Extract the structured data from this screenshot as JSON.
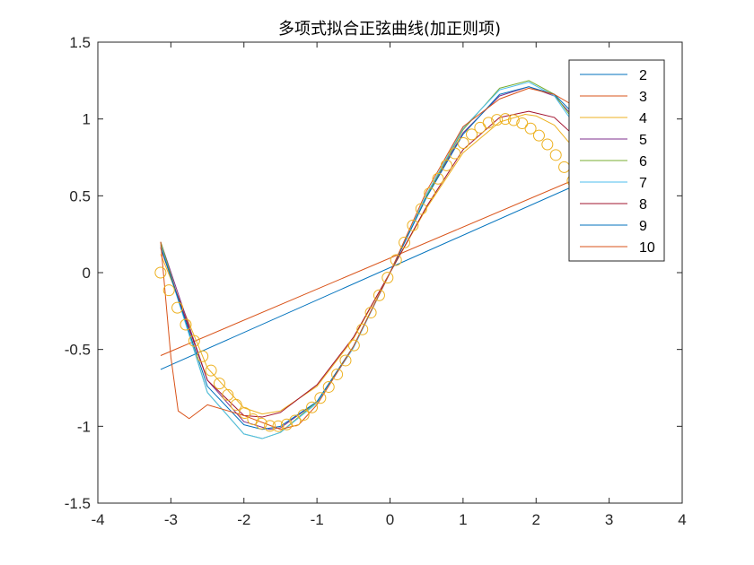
{
  "chart_data": {
    "type": "line",
    "title": "多项式拟合正弦曲线(加正则项)",
    "xlabel": "",
    "ylabel": "",
    "xlim": [
      -4,
      4
    ],
    "ylim": [
      -1.5,
      1.5
    ],
    "x_ticks": [
      -4,
      -3,
      -2,
      -1,
      0,
      1,
      2,
      3,
      4
    ],
    "y_ticks": [
      -1.5,
      -1,
      -0.5,
      0,
      0.5,
      1,
      1.5
    ],
    "x_tick_labels": [
      "-4",
      "-3",
      "-2",
      "-1",
      "0",
      "1",
      "2",
      "3",
      "4"
    ],
    "y_tick_labels": [
      "-1.5",
      "-1",
      "-0.5",
      "0",
      "0.5",
      "1",
      "1.5"
    ],
    "grid": false,
    "legend_position": "top-right",
    "data_markers": {
      "style": "open-circle",
      "color": "#EDB120",
      "x_range": [
        -3.14159,
        2.5
      ],
      "count": 50,
      "y_function": "sin"
    },
    "series": [
      {
        "name": "2",
        "color": "#0072BD",
        "x": [
          -3.14,
          2.5
        ],
        "y": [
          -0.63,
          0.56
        ]
      },
      {
        "name": "3",
        "color": "#D95319",
        "x": [
          -3.14,
          2.5
        ],
        "y": [
          -0.54,
          0.6
        ]
      },
      {
        "name": "4",
        "color": "#EDB120",
        "x": [
          -3.14,
          -2.5,
          -2.0,
          -1.75,
          -1.5,
          -1.0,
          -0.5,
          0.0,
          0.5,
          1.0,
          1.5,
          1.85,
          2.0,
          2.25,
          2.5
        ],
        "y": [
          0.12,
          -0.62,
          -0.88,
          -0.92,
          -0.9,
          -0.74,
          -0.43,
          0.0,
          0.42,
          0.78,
          0.98,
          1.03,
          1.02,
          0.96,
          0.82
        ]
      },
      {
        "name": "5",
        "color": "#7E2F8E",
        "x": [
          -3.14,
          -2.5,
          -2.0,
          -1.65,
          -1.5,
          -1.0,
          -0.5,
          0.0,
          0.5,
          1.0,
          1.5,
          1.9,
          2.25,
          2.5
        ],
        "y": [
          0.2,
          -0.7,
          -0.97,
          -1.02,
          -1.01,
          -0.84,
          -0.48,
          0.0,
          0.5,
          0.91,
          1.15,
          1.21,
          1.15,
          1.02
        ]
      },
      {
        "name": "6",
        "color": "#77AC30",
        "x": [
          -3.14,
          -2.5,
          -2.0,
          -1.75,
          -1.5,
          -1.0,
          -0.5,
          0.0,
          0.5,
          1.0,
          1.5,
          1.9,
          2.25,
          2.5
        ],
        "y": [
          0.2,
          -0.78,
          -1.05,
          -1.08,
          -1.04,
          -0.84,
          -0.48,
          0.0,
          0.5,
          0.93,
          1.2,
          1.25,
          1.16,
          1.0
        ]
      },
      {
        "name": "7",
        "color": "#4DBEEE",
        "x": [
          -3.14,
          -2.5,
          -2.0,
          -1.75,
          -1.5,
          -1.0,
          -0.5,
          0.0,
          0.5,
          1.0,
          1.5,
          1.9,
          2.25,
          2.5
        ],
        "y": [
          0.18,
          -0.78,
          -1.05,
          -1.08,
          -1.04,
          -0.85,
          -0.49,
          0.0,
          0.51,
          0.94,
          1.19,
          1.24,
          1.15,
          0.98
        ]
      },
      {
        "name": "8",
        "color": "#A2142F",
        "x": [
          -3.14,
          -2.5,
          -2.0,
          -1.75,
          -1.5,
          -1.0,
          -0.5,
          0.0,
          0.5,
          1.0,
          1.5,
          1.9,
          2.25,
          2.5
        ],
        "y": [
          0.16,
          -0.7,
          -0.93,
          -0.94,
          -0.91,
          -0.73,
          -0.42,
          0.0,
          0.43,
          0.8,
          1.01,
          1.05,
          1.01,
          0.9
        ]
      },
      {
        "name": "9",
        "color": "#0072BD",
        "x": [
          -3.14,
          -2.5,
          -2.0,
          -1.75,
          -1.5,
          -1.0,
          -0.5,
          0.0,
          0.5,
          1.0,
          1.5,
          1.9,
          2.25,
          2.5
        ],
        "y": [
          0.17,
          -0.74,
          -0.99,
          -1.02,
          -1.0,
          -0.84,
          -0.48,
          0.0,
          0.49,
          0.9,
          1.16,
          1.21,
          1.16,
          1.04
        ]
      },
      {
        "name": "10",
        "color": "#D95319",
        "x": [
          -3.14,
          -3.0,
          -2.9,
          -2.75,
          -2.5,
          -2.0,
          -1.5,
          -1.25,
          -1.0,
          -0.5,
          0.0,
          0.5,
          1.0,
          1.5,
          1.9,
          2.25,
          2.5
        ],
        "y": [
          0.2,
          -0.55,
          -0.9,
          -0.95,
          -0.86,
          -0.93,
          -1.02,
          -0.99,
          -0.86,
          -0.48,
          0.0,
          0.53,
          0.95,
          1.13,
          1.2,
          1.16,
          1.09
        ]
      }
    ]
  }
}
